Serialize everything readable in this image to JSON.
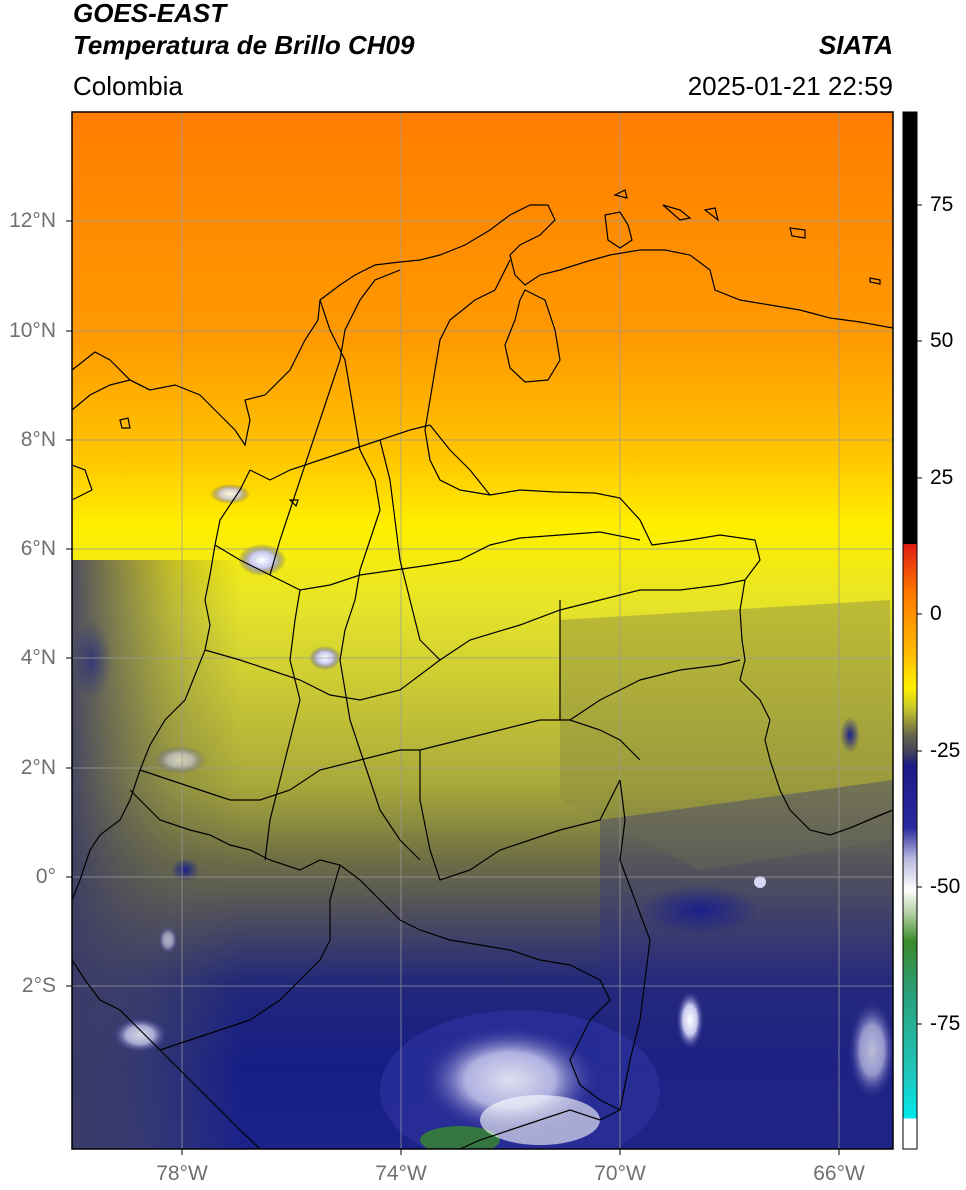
{
  "header": {
    "title_line1": "GOES-EAST",
    "title_line2": "Temperatura de Brillo CH09",
    "region": "Colombia",
    "agency": "SIATA",
    "datetime": "2025-01-21 22:59"
  },
  "map": {
    "lat_labels": [
      "12°N",
      "10°N",
      "8°N",
      "6°N",
      "4°N",
      "2°N",
      "0°",
      "2°S"
    ],
    "lon_labels": [
      "78°W",
      "74°W",
      "70°W",
      "66°W"
    ],
    "extent": {
      "lon_min": -80.0,
      "lon_max": -65.0,
      "lat_min": -5.0,
      "lat_max": 14.0
    },
    "grid_lats": [
      12,
      10,
      8,
      6,
      4,
      2,
      0,
      -2
    ],
    "grid_lons": [
      -78,
      -74,
      -70,
      -66
    ]
  },
  "colorbar": {
    "ticks": [
      "75",
      "50",
      "25",
      "0",
      "-25",
      "-50",
      "-75"
    ],
    "range": [
      -100,
      90
    ],
    "colors": {
      "hot": "#000000",
      "red": "#e8281e",
      "orange": "#ff8c00",
      "yellow": "#fff200",
      "olive": "#b5b52a",
      "gray": "#555555",
      "navy": "#101a8a",
      "white": "#ffffff",
      "green": "#3a8a2a",
      "teal": "#20c0b0",
      "cyan": "#00e5e5"
    }
  }
}
